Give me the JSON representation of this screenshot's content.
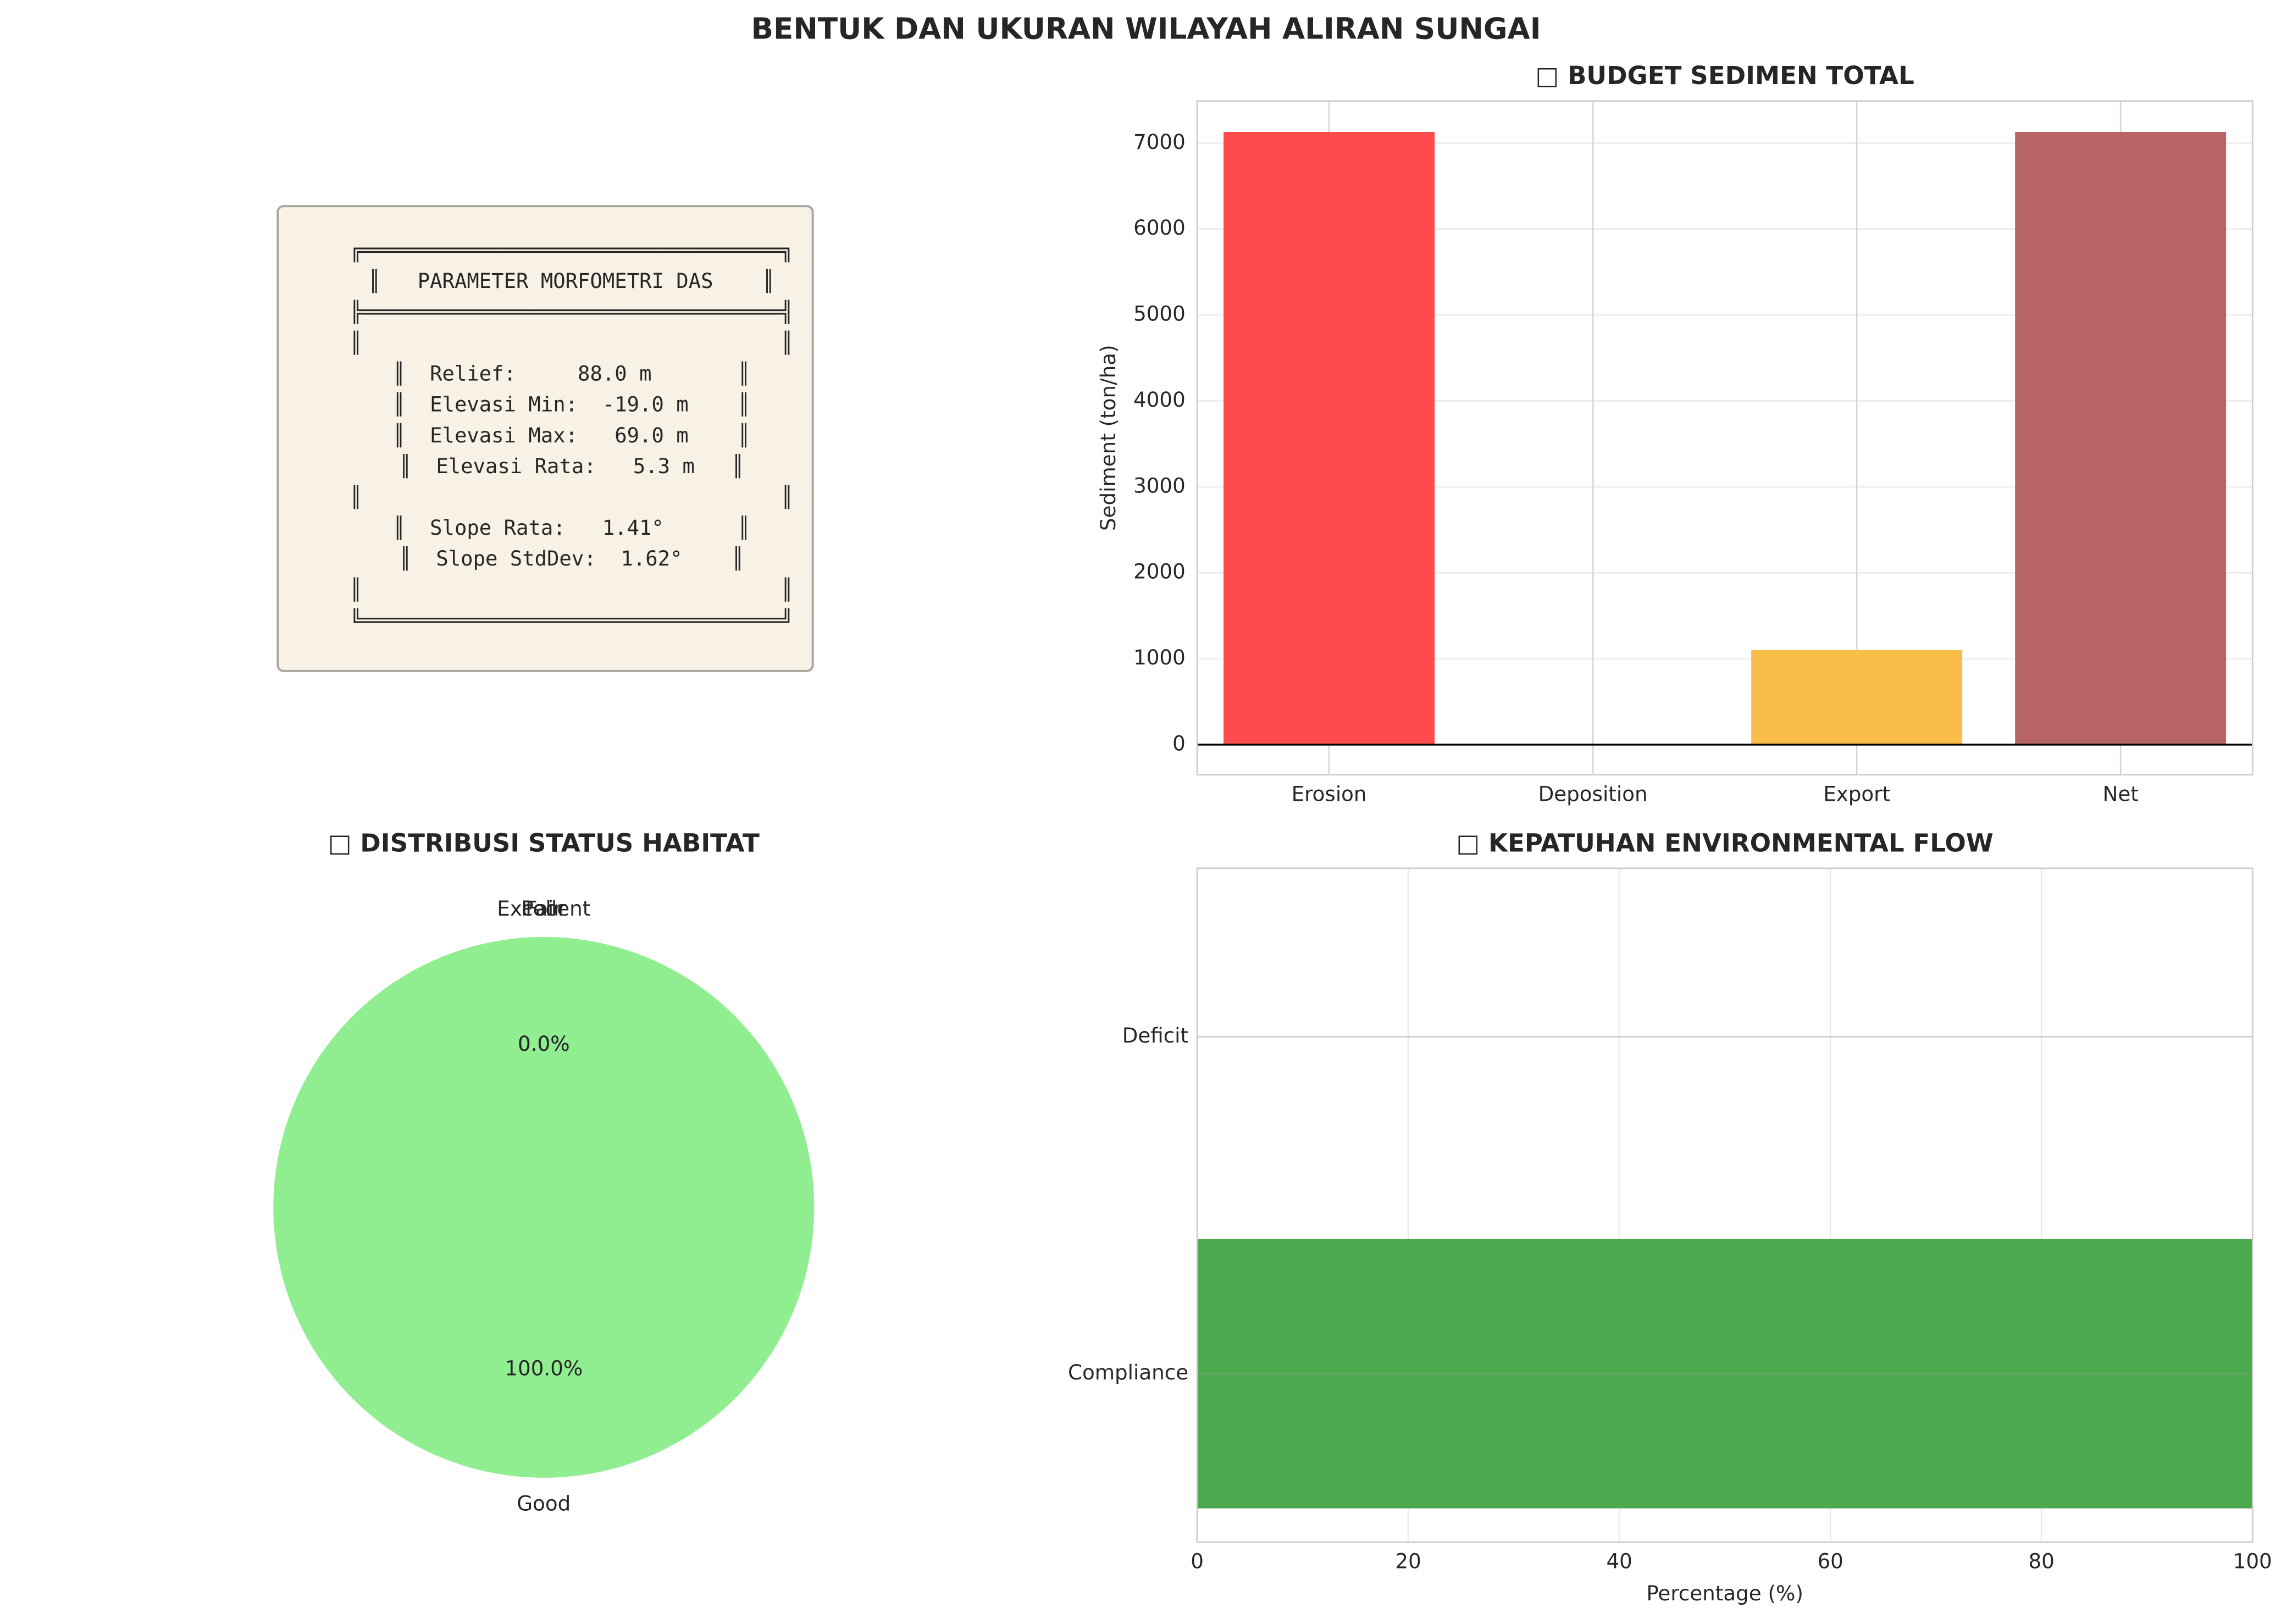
{
  "title": "BENTUK DAN UKURAN WILAYAH ALIRAN SUNGAI",
  "text_panel": {
    "lines": [
      "╔══════════════════════════════════╗",
      "║   PARAMETER MORFOMETRI DAS    ║",
      "╠══════════════════════════════════╣",
      "║                                  ║",
      "║  Relief:     88.0 m       ║",
      "║  Elevasi Min:  -19.0 m    ║",
      "║  Elevasi Max:   69.0 m    ║",
      "║  Elevasi Rata:   5.3 m   ║",
      "║                                  ║",
      "║  Slope Rata:   1.41°      ║",
      "║  Slope StdDev:  1.62°    ║",
      "║                                  ║",
      "╚══════════════════════════════════╝"
    ]
  },
  "chart_data": [
    {
      "type": "bar",
      "title": "□ BUDGET SEDIMEN TOTAL",
      "ylabel": "Sediment (ton/ha)",
      "categories": [
        "Erosion",
        "Deposition",
        "Export",
        "Net"
      ],
      "values": [
        7130,
        0,
        1100,
        7130
      ],
      "colors": [
        "#ff4b4b",
        "#4b7bd9",
        "#fbbd4a",
        "#b86565"
      ],
      "ylim": [
        -350,
        7490
      ],
      "yticks": [
        0,
        1000,
        2000,
        3000,
        4000,
        5000,
        6000,
        7000
      ],
      "grid": true
    },
    {
      "type": "pie",
      "title": "□ DISTRIBUSI STATUS HABITAT",
      "categories": [
        "Excellent",
        "Good",
        "Fair",
        "Poor"
      ],
      "values": [
        0,
        100,
        0,
        0
      ],
      "value_labels": [
        "0.0%",
        "100.0%",
        "0.0%",
        "0.0%"
      ],
      "colors": [
        "#228b22",
        "#90ee90",
        "#ffa500",
        "#ff6347"
      ]
    },
    {
      "type": "barh",
      "title": "□ KEPATUHAN ENVIRONMENTAL FLOW",
      "xlabel": "Percentage (%)",
      "categories": [
        "Compliance",
        "Deficit"
      ],
      "values": [
        100,
        0
      ],
      "colors": [
        "#4ca84c",
        "#ff4b4b"
      ],
      "xlim": [
        0,
        100
      ],
      "xticks": [
        0,
        20,
        40,
        60,
        80,
        100
      ],
      "grid": true
    }
  ]
}
